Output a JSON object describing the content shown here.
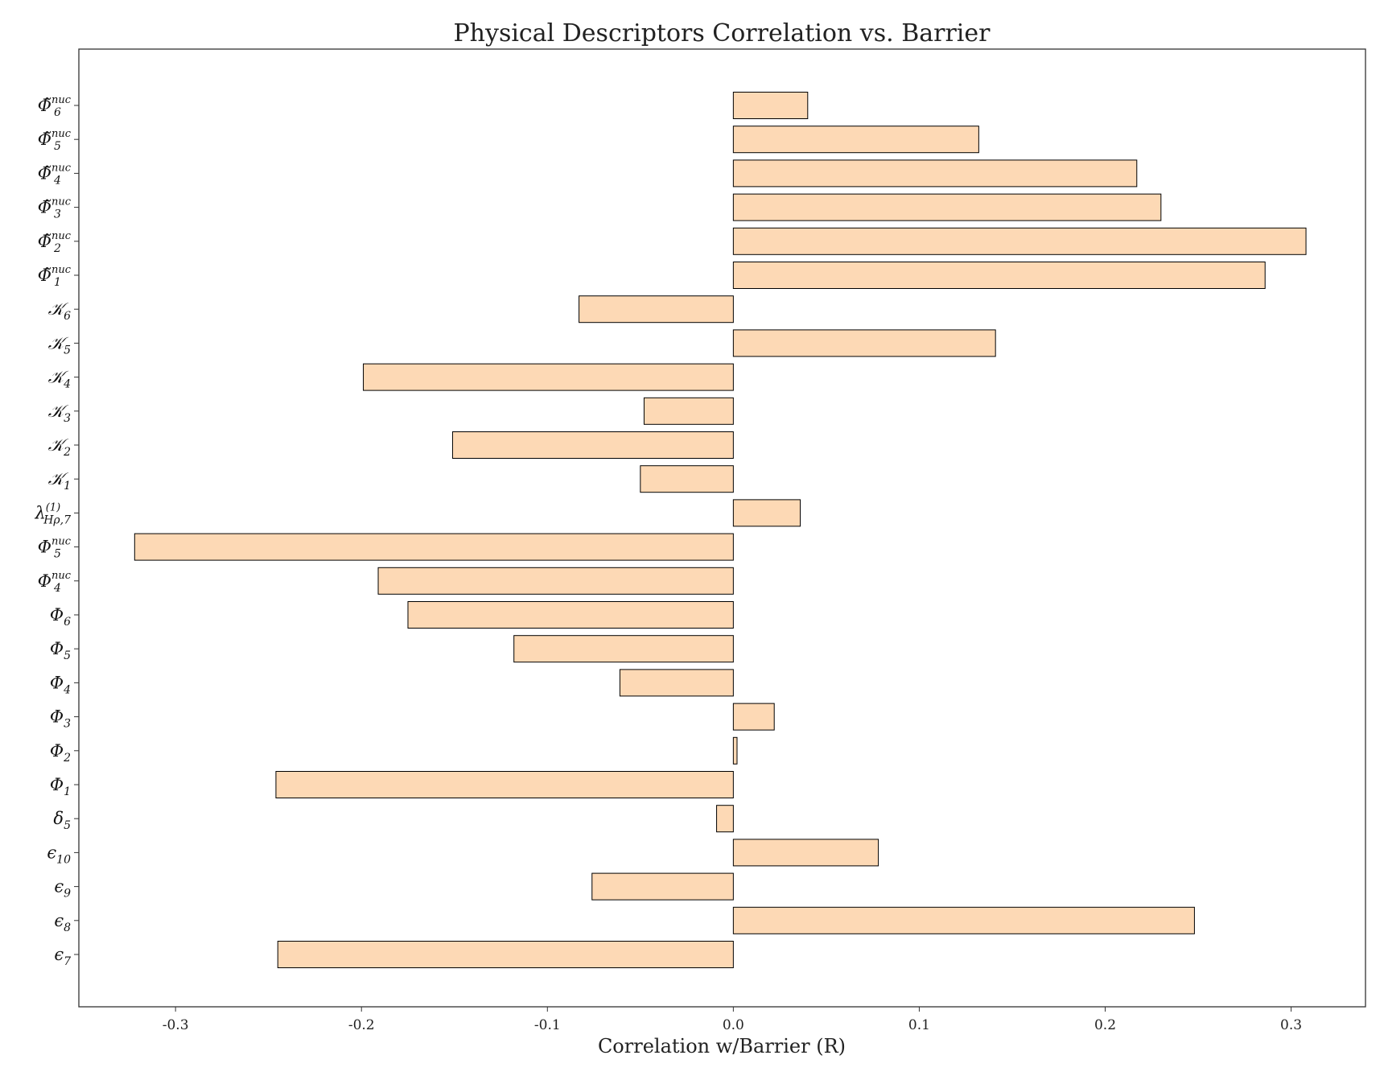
{
  "chart_data": {
    "type": "bar",
    "orientation": "horizontal",
    "title": "Physical Descriptors Correlation vs. Barrier",
    "xlabel": "Correlation w/Barrier (R)",
    "ylabel": "",
    "xlim": [
      -0.352,
      0.34
    ],
    "xticks": [
      -0.3,
      -0.2,
      -0.1,
      0.0,
      0.1,
      0.2,
      0.3
    ],
    "xtick_labels": [
      "-0.3",
      "-0.2",
      "-0.1",
      "0.0",
      "0.1",
      "0.2",
      "0.3"
    ],
    "grid": false,
    "legend": false,
    "bar_color": "#fdd9b5",
    "edge_color": "#000000",
    "categories": [
      {
        "label": "Φ̃6nuc",
        "base": "Φ̃",
        "sub": "6",
        "sup": "nuc"
      },
      {
        "label": "Φ̃5nuc",
        "base": "Φ̃",
        "sub": "5",
        "sup": "nuc"
      },
      {
        "label": "Φ̃4nuc",
        "base": "Φ̃",
        "sub": "4",
        "sup": "nuc"
      },
      {
        "label": "Φ̃3nuc",
        "base": "Φ̃",
        "sub": "3",
        "sup": "nuc"
      },
      {
        "label": "Φ̃2nuc",
        "base": "Φ̃",
        "sub": "2",
        "sup": "nuc"
      },
      {
        "label": "Φ̃1nuc",
        "base": "Φ̃",
        "sub": "1",
        "sup": "nuc"
      },
      {
        "label": "𝒦6",
        "base": "𝒦",
        "sub": "6",
        "sup": ""
      },
      {
        "label": "𝒦5",
        "base": "𝒦",
        "sub": "5",
        "sup": ""
      },
      {
        "label": "𝒦4",
        "base": "𝒦",
        "sub": "4",
        "sup": ""
      },
      {
        "label": "𝒦3",
        "base": "𝒦",
        "sub": "3",
        "sup": ""
      },
      {
        "label": "𝒦2",
        "base": "𝒦",
        "sub": "2",
        "sup": ""
      },
      {
        "label": "𝒦1",
        "base": "𝒦",
        "sub": "1",
        "sup": ""
      },
      {
        "label": "λHρ,7(1)",
        "base": "λ",
        "sub": "Hρ,7",
        "sup": "(1)"
      },
      {
        "label": "Φ5nuc",
        "base": "Φ",
        "sub": "5",
        "sup": "nuc"
      },
      {
        "label": "Φ4nuc",
        "base": "Φ",
        "sub": "4",
        "sup": "nuc"
      },
      {
        "label": "Φ6",
        "base": "Φ",
        "sub": "6",
        "sup": ""
      },
      {
        "label": "Φ5",
        "base": "Φ",
        "sub": "5",
        "sup": ""
      },
      {
        "label": "Φ4",
        "base": "Φ",
        "sub": "4",
        "sup": ""
      },
      {
        "label": "Φ3",
        "base": "Φ",
        "sub": "3",
        "sup": ""
      },
      {
        "label": "Φ2",
        "base": "Φ",
        "sub": "2",
        "sup": ""
      },
      {
        "label": "Φ1",
        "base": "Φ",
        "sub": "1",
        "sup": ""
      },
      {
        "label": "δ5",
        "base": "δ",
        "sub": "5",
        "sup": ""
      },
      {
        "label": "ϵ10",
        "base": "ϵ",
        "sub": "10",
        "sup": ""
      },
      {
        "label": "ϵ9",
        "base": "ϵ",
        "sub": "9",
        "sup": ""
      },
      {
        "label": "ϵ8",
        "base": "ϵ",
        "sub": "8",
        "sup": ""
      },
      {
        "label": "ϵ7",
        "base": "ϵ",
        "sub": "7",
        "sup": ""
      }
    ],
    "values": [
      0.04,
      0.132,
      0.217,
      0.23,
      0.308,
      0.286,
      -0.083,
      0.141,
      -0.199,
      -0.048,
      -0.151,
      -0.05,
      0.036,
      -0.322,
      -0.191,
      -0.175,
      -0.118,
      -0.061,
      0.022,
      0.002,
      -0.246,
      -0.009,
      0.078,
      -0.076,
      0.248,
      -0.245
    ]
  }
}
